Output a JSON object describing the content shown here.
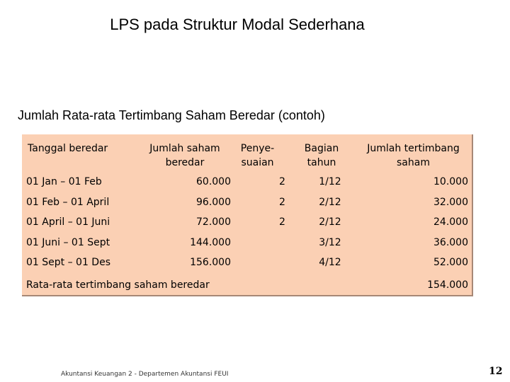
{
  "slide": {
    "title": "LPS pada Struktur Modal Sederhana",
    "subtitle": "Jumlah Rata-rata Tertimbang Saham Beredar (contoh)",
    "footer": "Akuntansi Keuangan 2 - Departemen Akuntansi FEUI",
    "page_number": "12"
  },
  "table": {
    "headers": {
      "date": "Tanggal beredar",
      "shares": "Jumlah saham beredar",
      "adjust": "Penye- suaian",
      "fraction": "Bagian tahun",
      "weighted": "Jumlah tertimbang saham"
    },
    "rows": [
      {
        "date": "01 Jan – 01 Feb",
        "shares": "60.000",
        "adjust": "2",
        "fraction": "1/12",
        "weighted": "10.000"
      },
      {
        "date": "01 Feb – 01 April",
        "shares": "96.000",
        "adjust": "2",
        "fraction": "2/12",
        "weighted": "32.000"
      },
      {
        "date": "01 April – 01 Juni",
        "shares": "72.000",
        "adjust": "2",
        "fraction": "2/12",
        "weighted": "24.000"
      },
      {
        "date": "01 Juni – 01 Sept",
        "shares": "144.000",
        "adjust": "",
        "fraction": "3/12",
        "weighted": "36.000"
      },
      {
        "date": "01 Sept – 01 Des",
        "shares": "156.000",
        "adjust": "",
        "fraction": "4/12",
        "weighted": "52.000"
      }
    ],
    "total": {
      "label": "Rata-rata tertimbang saham beredar",
      "value": "154.000"
    }
  }
}
